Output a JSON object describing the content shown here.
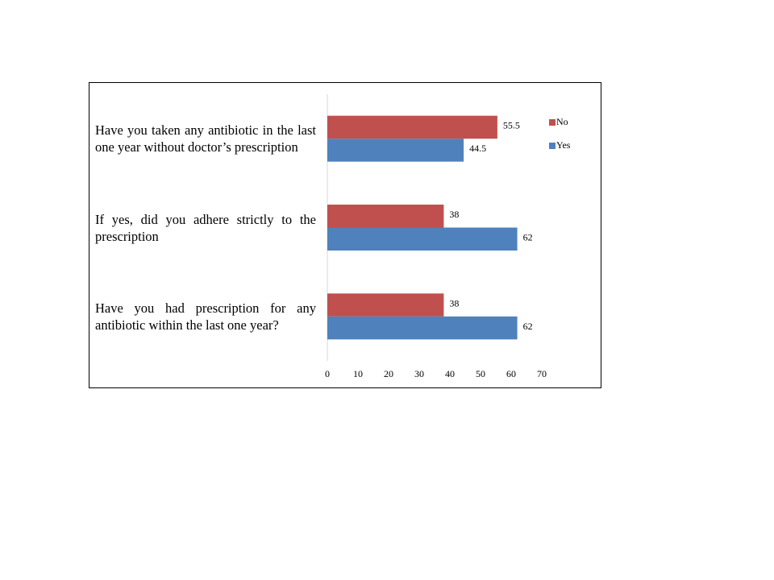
{
  "chart_data": {
    "type": "bar",
    "orientation": "horizontal",
    "categories": [
      "Have you taken any antibiotic in the last one year without doctor’s prescription",
      "If yes, did you adhere strictly to the prescription",
      "Have you had prescription for any antibiotic within the last one year?"
    ],
    "series": [
      {
        "name": "No",
        "color": "#c0504d",
        "values": [
          55.5,
          38,
          38
        ]
      },
      {
        "name": "Yes",
        "color": "#4f81bd",
        "values": [
          44.5,
          62,
          62
        ]
      }
    ],
    "xlim": [
      0,
      70
    ],
    "xticks": [
      0,
      10,
      20,
      30,
      40,
      50,
      60,
      70
    ],
    "legend": "right"
  }
}
